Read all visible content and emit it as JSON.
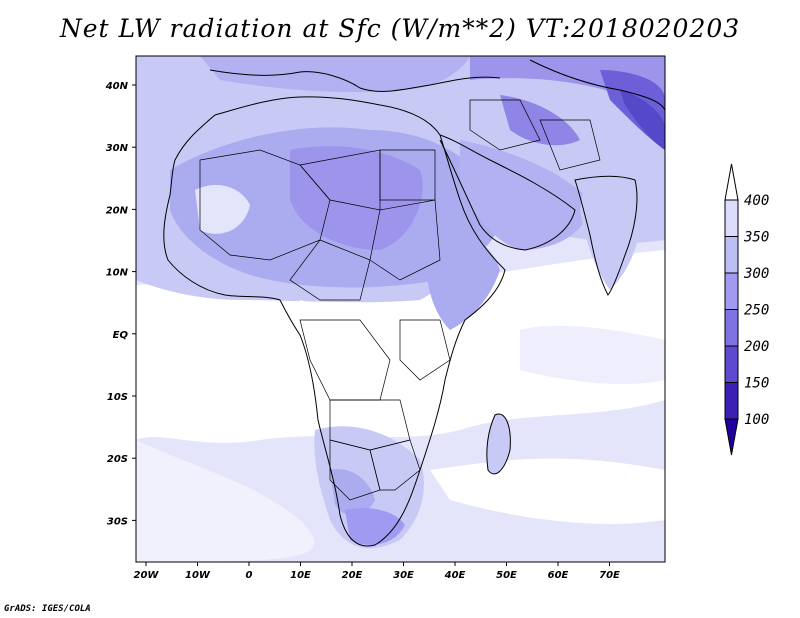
{
  "title": "Net LW radiation at Sfc (W/m**2) VT:2018020203",
  "credit": "GrADS: IGES/COLA",
  "x_ticks": [
    "20W",
    "10W",
    "0",
    "10E",
    "20E",
    "30E",
    "40E",
    "50E",
    "60E",
    "70E"
  ],
  "y_ticks": [
    "40N",
    "30N",
    "20N",
    "10N",
    "EQ",
    "10S",
    "20S",
    "30S"
  ],
  "colorbar": {
    "labels": [
      "400",
      "350",
      "300",
      "250",
      "200",
      "150",
      "100"
    ],
    "colors": [
      "#ffffff",
      "#dcdcfc",
      "#bebef7",
      "#a09af0",
      "#7d73e3",
      "#5e49d1",
      "#3c1fb4",
      "#2200a0"
    ]
  },
  "palette": {
    "white": "#ffffff",
    "pale": "#e4e4fb",
    "light": "#c9c9f6",
    "mid": "#ababef",
    "medium_dark": "#8e85e6",
    "dark": "#6c5fd8"
  }
}
